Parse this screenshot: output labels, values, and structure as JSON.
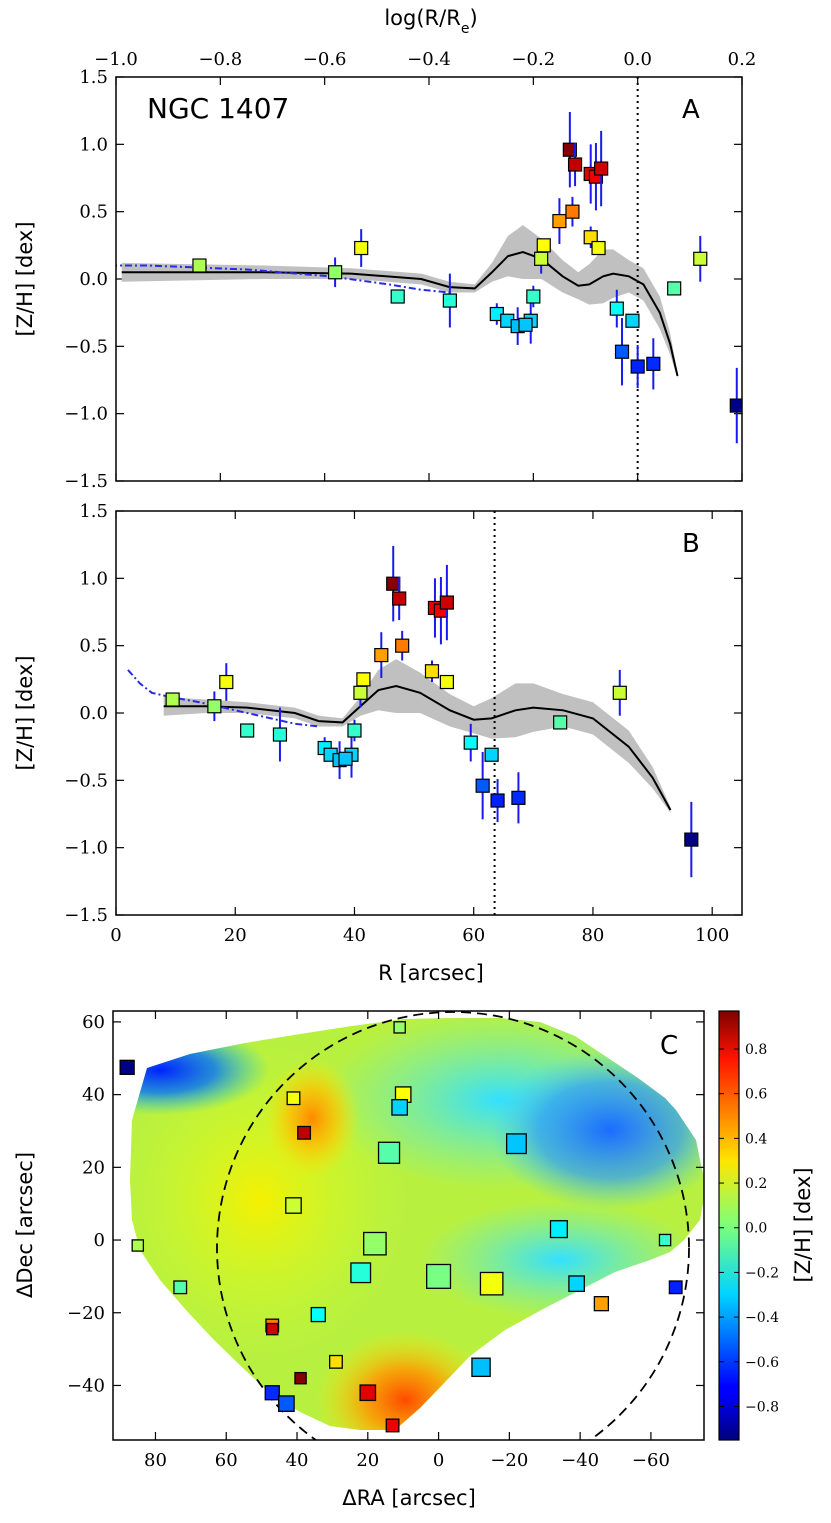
{
  "chart_data": [
    {
      "type": "scatter",
      "panel": "A",
      "label": "NGC 1407",
      "panel_letter": "A",
      "xlabel_top": "log(R/R",
      "xlabel_top_sub": "e",
      "xlabel_top_close": ")",
      "ylabel": "[Z/H] [dex]",
      "xlim": [
        -1.0,
        0.2
      ],
      "ylim": [
        -1.5,
        1.5
      ],
      "xticks": [
        "−1.0",
        "−0.8",
        "−0.6",
        "−0.4",
        "−0.2",
        "0.0",
        "0.2"
      ],
      "yticks": [
        "1.5",
        "1.0",
        "0.5",
        "0.0",
        "−0.5",
        "−1.0",
        "−1.5"
      ],
      "reference_line_x": 0.0,
      "points": [
        {
          "x": -0.84,
          "y": 0.1
        },
        {
          "x": -0.58,
          "y": 0.05
        },
        {
          "x": -0.53,
          "y": 0.23
        },
        {
          "x": -0.46,
          "y": -0.13
        },
        {
          "x": -0.36,
          "y": -0.16
        },
        {
          "x": -0.27,
          "y": -0.26
        },
        {
          "x": -0.25,
          "y": -0.31
        },
        {
          "x": -0.23,
          "y": -0.35
        },
        {
          "x": -0.205,
          "y": -0.31
        },
        {
          "x": -0.215,
          "y": -0.34
        },
        {
          "x": -0.2,
          "y": -0.13
        },
        {
          "x": -0.185,
          "y": 0.15
        },
        {
          "x": -0.18,
          "y": 0.25
        },
        {
          "x": -0.15,
          "y": 0.43
        },
        {
          "x": -0.13,
          "y": 0.96
        },
        {
          "x": -0.12,
          "y": 0.85
        },
        {
          "x": -0.125,
          "y": 0.5
        },
        {
          "x": -0.09,
          "y": 0.78
        },
        {
          "x": -0.08,
          "y": 0.76
        },
        {
          "x": -0.07,
          "y": 0.82
        },
        {
          "x": -0.09,
          "y": 0.31
        },
        {
          "x": -0.075,
          "y": 0.23
        },
        {
          "x": -0.04,
          "y": -0.22
        },
        {
          "x": -0.03,
          "y": -0.54
        },
        {
          "x": -0.01,
          "y": -0.31
        },
        {
          "x": 0.0,
          "y": -0.65
        },
        {
          "x": 0.03,
          "y": -0.63
        },
        {
          "x": 0.07,
          "y": -0.07
        },
        {
          "x": 0.12,
          "y": 0.15
        },
        {
          "x": 0.19,
          "y": -0.94
        }
      ]
    },
    {
      "type": "scatter",
      "panel": "B",
      "panel_letter": "B",
      "xlabel": "R [arcsec]",
      "ylabel": "[Z/H] [dex]",
      "xlim": [
        0,
        105
      ],
      "ylim": [
        -1.5,
        1.5
      ],
      "xticks": [
        "0",
        "20",
        "40",
        "60",
        "80",
        "100"
      ],
      "yticks": [
        "1.5",
        "1.0",
        "0.5",
        "0.0",
        "−0.5",
        "−1.0",
        "−1.5"
      ],
      "reference_line_x": 63.5,
      "points": [
        {
          "x": 9.5,
          "y": 0.1
        },
        {
          "x": 16.5,
          "y": 0.05
        },
        {
          "x": 18.5,
          "y": 0.23
        },
        {
          "x": 22.0,
          "y": -0.13
        },
        {
          "x": 27.5,
          "y": -0.16
        },
        {
          "x": 35.0,
          "y": -0.26
        },
        {
          "x": 36.0,
          "y": -0.31
        },
        {
          "x": 37.5,
          "y": -0.35
        },
        {
          "x": 39.5,
          "y": -0.31
        },
        {
          "x": 38.5,
          "y": -0.34
        },
        {
          "x": 40.0,
          "y": -0.13
        },
        {
          "x": 41.0,
          "y": 0.15
        },
        {
          "x": 41.5,
          "y": 0.25
        },
        {
          "x": 44.5,
          "y": 0.43
        },
        {
          "x": 46.5,
          "y": 0.96
        },
        {
          "x": 47.5,
          "y": 0.85
        },
        {
          "x": 48.0,
          "y": 0.5
        },
        {
          "x": 53.5,
          "y": 0.78
        },
        {
          "x": 54.5,
          "y": 0.76
        },
        {
          "x": 55.5,
          "y": 0.82
        },
        {
          "x": 53.0,
          "y": 0.31
        },
        {
          "x": 55.5,
          "y": 0.23
        },
        {
          "x": 59.5,
          "y": -0.22
        },
        {
          "x": 61.5,
          "y": -0.54
        },
        {
          "x": 63.0,
          "y": -0.31
        },
        {
          "x": 64.0,
          "y": -0.65
        },
        {
          "x": 67.5,
          "y": -0.63
        },
        {
          "x": 74.5,
          "y": -0.07
        },
        {
          "x": 84.5,
          "y": 0.15
        },
        {
          "x": 96.5,
          "y": -0.94
        }
      ]
    },
    {
      "type": "heatmap",
      "panel": "C",
      "panel_letter": "C",
      "xlabel": "ΔRA [arcsec]",
      "ylabel": "ΔDec [arcsec]",
      "colorbar_label": "[Z/H] [dex]",
      "xlim": [
        92,
        -75
      ],
      "ylim": [
        -55,
        63
      ],
      "xticks": [
        "80",
        "60",
        "40",
        "20",
        "0",
        "−20",
        "−40",
        "−60"
      ],
      "yticks": [
        "60",
        "40",
        "20",
        "0",
        "−20",
        "−40"
      ],
      "colorbar_ticks": [
        "0.8",
        "0.6",
        "0.4",
        "0.2",
        "0.0",
        "−0.2",
        "−0.4",
        "−0.6",
        "−0.8"
      ],
      "colorbar_range": [
        -0.95,
        0.97
      ],
      "points": [
        {
          "x": 88,
          "y": 47.5,
          "z": -0.94,
          "size": 1.0
        },
        {
          "x": 11,
          "y": 58.5,
          "z": 0.05,
          "size": 0.8
        },
        {
          "x": 41,
          "y": 39,
          "z": 0.23,
          "size": 0.9
        },
        {
          "x": 10,
          "y": 40,
          "z": 0.25,
          "size": 1.1
        },
        {
          "x": 11,
          "y": 36.5,
          "z": -0.31,
          "size": 1.1
        },
        {
          "x": 38,
          "y": 29.5,
          "z": 0.85,
          "size": 0.9
        },
        {
          "x": 14,
          "y": 24,
          "z": -0.07,
          "size": 1.5
        },
        {
          "x": -22,
          "y": 26.5,
          "z": -0.34,
          "size": 1.4
        },
        {
          "x": 41,
          "y": 9.5,
          "z": 0.15,
          "size": 1.1
        },
        {
          "x": 85,
          "y": -1.5,
          "z": 0.1,
          "size": 0.8
        },
        {
          "x": 18,
          "y": -1,
          "z": 0.05,
          "size": 1.6
        },
        {
          "x": -34,
          "y": 3,
          "z": -0.26,
          "size": 1.2
        },
        {
          "x": -64,
          "y": 0,
          "z": -0.13,
          "size": 0.8
        },
        {
          "x": 22,
          "y": -9,
          "z": -0.16,
          "size": 1.4
        },
        {
          "x": 0,
          "y": -10,
          "z": 0.0,
          "size": 1.7
        },
        {
          "x": -15,
          "y": -12,
          "z": 0.23,
          "size": 1.6
        },
        {
          "x": -39,
          "y": -12,
          "z": -0.31,
          "size": 1.1
        },
        {
          "x": 73,
          "y": -13,
          "z": -0.07,
          "size": 0.9
        },
        {
          "x": -67,
          "y": -13,
          "z": -0.65,
          "size": 0.9
        },
        {
          "x": -46,
          "y": -17.5,
          "z": 0.43,
          "size": 1.0
        },
        {
          "x": 34,
          "y": -20.5,
          "z": -0.22,
          "size": 1.0
        },
        {
          "x": 47,
          "y": -23.5,
          "z": 0.5,
          "size": 0.9
        },
        {
          "x": 47,
          "y": -24.5,
          "z": 0.82,
          "size": 0.8
        },
        {
          "x": 29,
          "y": -33.5,
          "z": 0.31,
          "size": 0.9
        },
        {
          "x": -12,
          "y": -35,
          "z": -0.35,
          "size": 1.3
        },
        {
          "x": 39,
          "y": -38,
          "z": 0.96,
          "size": 0.8
        },
        {
          "x": 47,
          "y": -42,
          "z": -0.63,
          "size": 1.0
        },
        {
          "x": 20,
          "y": -42,
          "z": 0.78,
          "size": 1.1
        },
        {
          "x": 43,
          "y": -45,
          "z": -0.54,
          "size": 1.1
        },
        {
          "x": 13,
          "y": -51,
          "z": 0.76,
          "size": 0.9
        }
      ]
    }
  ]
}
